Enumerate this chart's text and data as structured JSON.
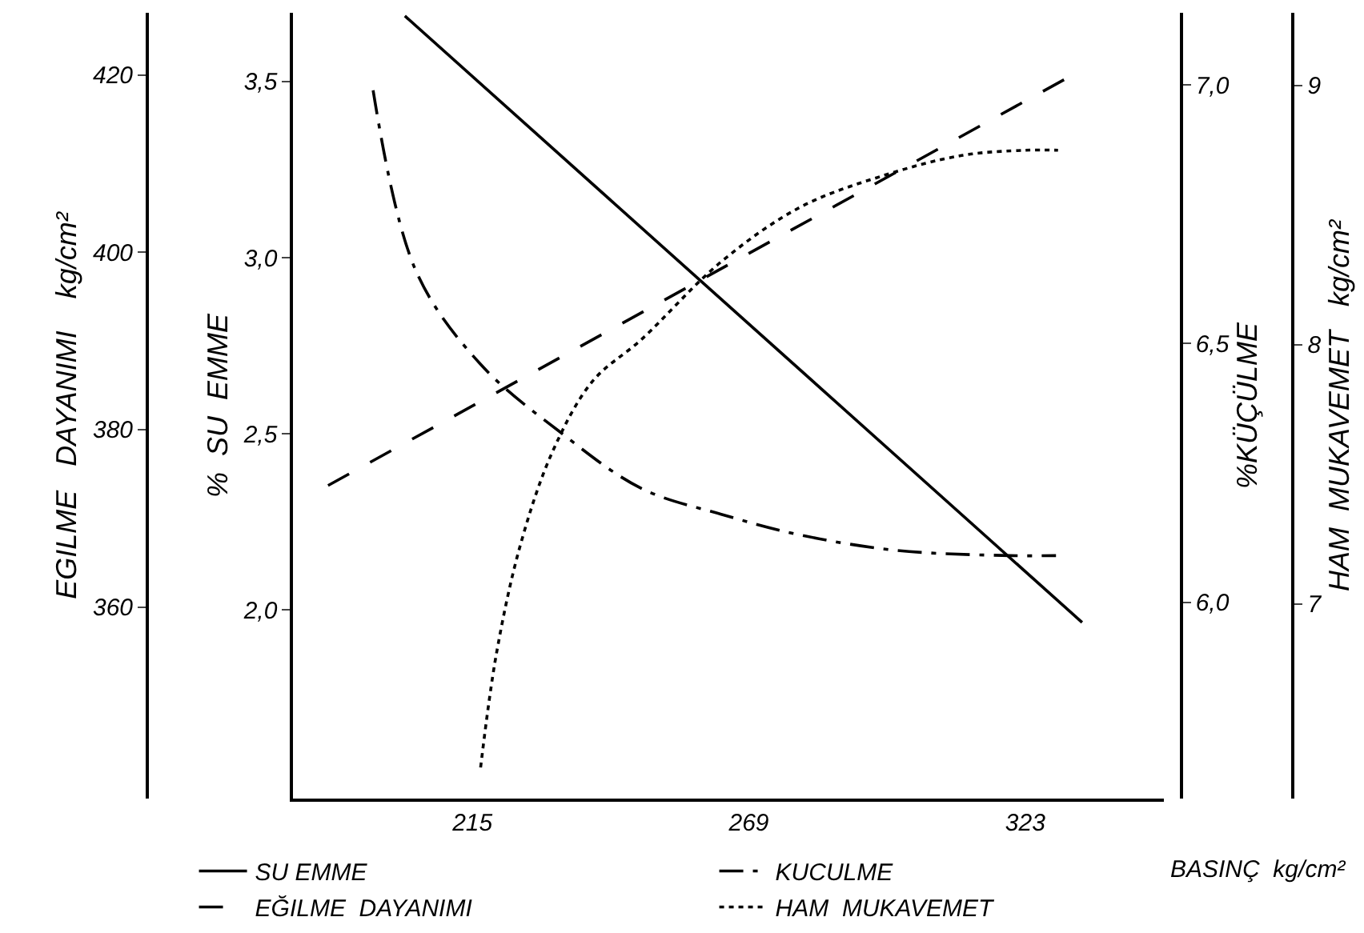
{
  "chart_data": [
    {
      "type": "line",
      "xlabel": "BASINÇ  kg/cm²",
      "ylabel": "%  SU  EMME",
      "y2label": "EGILME   DAYANIMI    kg/cm²",
      "y3label": "%KÜÇÜLME",
      "xlim": [
        180,
        350
      ],
      "xticks": [
        215,
        269,
        323
      ],
      "ylim": [
        1.465,
        3.695
      ],
      "yticks": [
        {
          "value": 2.0,
          "label": "2,0"
        },
        {
          "value": 2.5,
          "label": "2,5"
        },
        {
          "value": 3.0,
          "label": "3,0"
        },
        {
          "value": 3.5,
          "label": "3,5"
        }
      ],
      "y2lim": [
        338.4,
        427
      ],
      "y2ticks": [
        360,
        380,
        400,
        420
      ],
      "y3lim": [
        5.62,
        7.14
      ],
      "y3ticks": [
        {
          "value": 6.0,
          "label": "6,0"
        },
        {
          "value": 6.5,
          "label": "6,5"
        },
        {
          "value": 7.0,
          "label": "7,0"
        }
      ],
      "legend": "bottom",
      "marker": "none",
      "series": [
        {
          "name": "SU EMME",
          "color": "#000000",
          "line_style": "solid",
          "x": [
            201.8,
            334.1
          ],
          "values": [
            3.686,
            1.965
          ]
        },
        {
          "name": "KUCULME",
          "color": "#000000",
          "line_style": "dashdot",
          "axis": "y3",
          "x": [
            195.6,
            204,
            216.6,
            232,
            248,
            263.6,
            279,
            298,
            320,
            329
          ],
          "values": [
            6.99,
            6.64,
            6.46,
            6.33,
            6.22,
            6.17,
            6.13,
            6.1,
            6.09,
            6.09
          ]
        },
        {
          "name": "EĞILME  DAYANIMI",
          "color": "#000000",
          "line_style": "dashed",
          "axis": "y2",
          "x": [
            186.8,
            331
          ],
          "values": [
            373.7,
            419.6
          ]
        }
      ]
    },
    {
      "type": "line",
      "ylabel": "HAM  MUKAVEMET   kg/cm²",
      "xlim": [
        180,
        350
      ],
      "ylim": [
        6.25,
        9.28
      ],
      "yticks": [
        7,
        8,
        9
      ],
      "tick_labels": "y",
      "legend": "bottom",
      "marker": "none",
      "series": [
        {
          "name": "HAM  MUKAVEMET",
          "color": "#000000",
          "line_style": "dotted",
          "x": [
            216.6,
            219.7,
            224.4,
            230.7,
            238.5,
            248,
            263.6,
            279,
            294.9,
            310.6,
            323,
            329.4
          ],
          "values": [
            6.37,
            6.81,
            7.23,
            7.59,
            7.86,
            8.02,
            8.32,
            8.53,
            8.65,
            8.73,
            8.75,
            8.75
          ]
        }
      ]
    }
  ]
}
